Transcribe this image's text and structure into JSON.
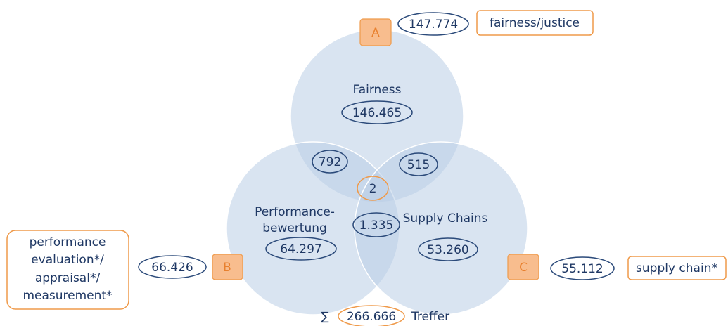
{
  "sets": [
    {
      "letter": "A",
      "total": "147.774",
      "term_lines": [
        "fairness/justice"
      ],
      "label_lines": [
        "Fairness"
      ],
      "unique": "146.465"
    },
    {
      "letter": "B",
      "total": "66.426",
      "term_lines": [
        "performance",
        "evaluation*/",
        "appraisal*/",
        "measurement*"
      ],
      "label_lines": [
        "Performance-",
        "bewertung"
      ],
      "unique": "64.297"
    },
    {
      "letter": "C",
      "total": "55.112",
      "term_lines": [
        "supply chain*"
      ],
      "label_lines": [
        "Supply Chains"
      ],
      "unique": "53.260"
    }
  ],
  "intersections": {
    "ab": "792",
    "ac": "515",
    "abc": "2",
    "bc": "1.335"
  },
  "sum": {
    "symbol": "∑",
    "value": "266.666",
    "unit": "Treffer"
  }
}
